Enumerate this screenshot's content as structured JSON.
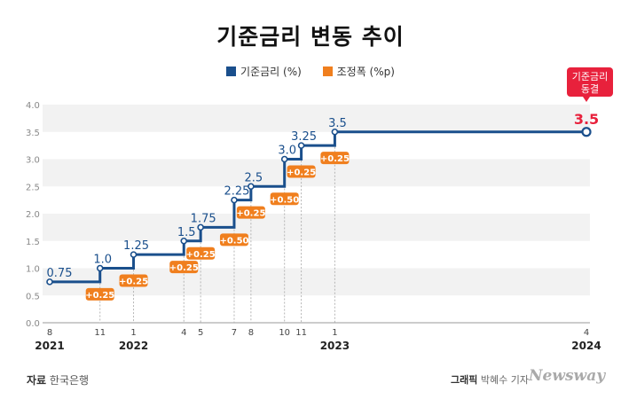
{
  "header": {
    "title": "기준금리 변동 추이"
  },
  "legend": [
    {
      "label": "기준금리 (%)",
      "color": "#1a4f8c"
    },
    {
      "label": "조정폭 (%p)",
      "color": "#f07f1e"
    }
  ],
  "footer": {
    "source_label": "자료",
    "source_value": "한국은행",
    "credit_label": "그래픽",
    "credit_value": "박혜수 기자",
    "brand": "Newsway"
  },
  "callout": {
    "text_line1": "기준금리",
    "text_line2": "동결",
    "color": "#e8213c"
  },
  "chart_data": {
    "type": "line",
    "step": true,
    "ylim": [
      0,
      4.0
    ],
    "yticks": [
      "0.0",
      "0.5",
      "1.0",
      "1.5",
      "2.0",
      "2.5",
      "3.0",
      "3.5",
      "4.0"
    ],
    "grid": "alternating bands",
    "points": [
      {
        "month": "8",
        "date": "2021-08",
        "rate": 0.75,
        "rate_label": "0.75",
        "change": null
      },
      {
        "month": "11",
        "date": "2021-11",
        "rate": 1.0,
        "rate_label": "1.0",
        "change": "+0.25"
      },
      {
        "month": "1",
        "date": "2022-01",
        "rate": 1.25,
        "rate_label": "1.25",
        "change": "+0.25"
      },
      {
        "month": "4",
        "date": "2022-04",
        "rate": 1.5,
        "rate_label": "1.5",
        "change": "+0.25"
      },
      {
        "month": "5",
        "date": "2022-05",
        "rate": 1.75,
        "rate_label": "1.75",
        "change": "+0.25"
      },
      {
        "month": "7",
        "date": "2022-07",
        "rate": 2.25,
        "rate_label": "2.25",
        "change": "+0.50"
      },
      {
        "month": "8",
        "date": "2022-08",
        "rate": 2.5,
        "rate_label": "2.5",
        "change": "+0.25"
      },
      {
        "month": "10",
        "date": "2022-10",
        "rate": 3.0,
        "rate_label": "3.0",
        "change": "+0.50"
      },
      {
        "month": "11",
        "date": "2022-11",
        "rate": 3.25,
        "rate_label": "3.25",
        "change": "+0.25"
      },
      {
        "month": "1",
        "date": "2023-01",
        "rate": 3.5,
        "rate_label": "3.5",
        "change": "+0.25"
      },
      {
        "month": "4",
        "date": "2024-04",
        "rate": 3.5,
        "rate_label": "3.5",
        "change": null,
        "highlight": true
      }
    ],
    "year_labels": [
      {
        "year": "2021",
        "date": "2021-08"
      },
      {
        "year": "2022",
        "date": "2022-01"
      },
      {
        "year": "2023",
        "date": "2023-01"
      },
      {
        "year": "2024",
        "date": "2024-04"
      }
    ]
  }
}
